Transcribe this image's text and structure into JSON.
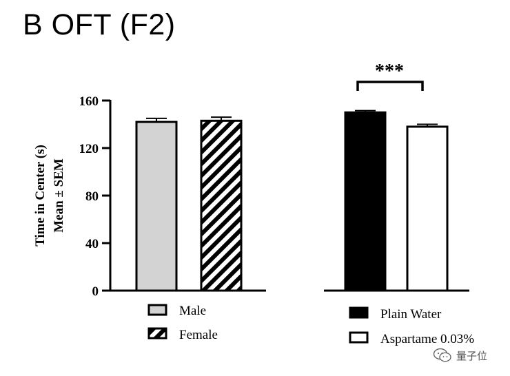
{
  "header": {
    "title": "B OFT (F2)"
  },
  "watermark": {
    "text": "量子位",
    "icon": "wechat-icon"
  },
  "chart_data": [
    {
      "type": "bar",
      "title": "",
      "xlabel": "",
      "ylabel": "Time in Center (s)",
      "ylabel_line2": "Mean ± SEM",
      "ylim": [
        0,
        160
      ],
      "yticks": [
        "0",
        "40",
        "80",
        "120",
        "160"
      ],
      "categories": [
        "Male",
        "Female"
      ],
      "values": [
        142,
        143
      ],
      "sem": [
        3,
        3
      ],
      "bar_styles": [
        "solid-gray",
        "diagonal-hatch"
      ],
      "colors": {
        "male": "#d3d3d3",
        "female": "#000000"
      },
      "legend": [
        "Male",
        "Female"
      ],
      "legend_position": "bottom"
    },
    {
      "type": "bar",
      "title": "",
      "xlabel": "",
      "ylabel": "",
      "ylim": [
        0,
        160
      ],
      "categories": [
        "Plain Water",
        "Aspartame 0.03%"
      ],
      "values": [
        150,
        138
      ],
      "sem": [
        1.5,
        2
      ],
      "bar_styles": [
        "solid-black",
        "open-white"
      ],
      "colors": {
        "plain_water": "#000000",
        "aspartame": "#ffffff"
      },
      "significance": "***",
      "legend": [
        "Plain Water",
        "Aspartame 0.03%"
      ],
      "legend_position": "bottom"
    }
  ]
}
